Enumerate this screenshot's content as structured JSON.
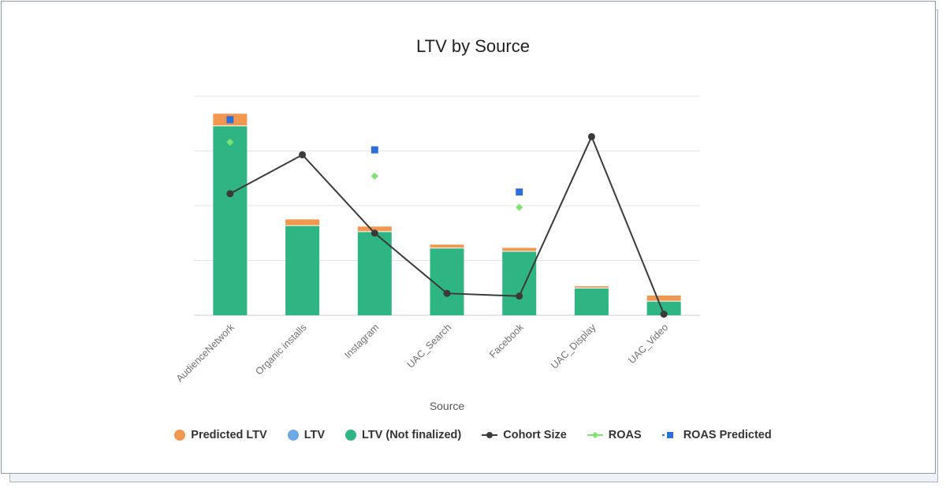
{
  "chart_data": {
    "type": "bar",
    "title": "LTV by Source",
    "xlabel": "Source",
    "ylabel": "",
    "categories": [
      "AudienceNetwork",
      "Organic installs",
      "Instagram",
      "UAC_Search",
      "Facebook",
      "UAC_Display",
      "UAC_Video"
    ],
    "ylim": [
      0,
      4
    ],
    "grid": true,
    "legend_position": "bottom",
    "series": [
      {
        "name": "LTV (Not finalized)",
        "kind": "stacked-bar",
        "color": "#2fb584",
        "values": [
          3.45,
          1.63,
          1.52,
          1.22,
          1.16,
          0.49,
          0.25
        ]
      },
      {
        "name": "Predicted LTV",
        "kind": "stacked-bar",
        "color": "#f2974f",
        "values": [
          0.23,
          0.12,
          0.1,
          0.07,
          0.07,
          0.04,
          0.11
        ]
      },
      {
        "name": "LTV",
        "kind": "stacked-bar",
        "color": "#6fa8e8",
        "values": [
          0,
          0,
          0,
          0,
          0,
          0,
          0
        ]
      },
      {
        "name": "Cohort Size",
        "kind": "line",
        "color": "#3a3a3a",
        "values": [
          2.22,
          2.93,
          1.5,
          0.4,
          0.35,
          3.26,
          0.02
        ]
      },
      {
        "name": "ROAS",
        "kind": "scatter-diamond",
        "color": "#7ee36f",
        "values": [
          3.16,
          null,
          2.54,
          null,
          1.97,
          null,
          null
        ]
      },
      {
        "name": "ROAS Predicted",
        "kind": "scatter-square",
        "color": "#2d6fd6",
        "values": [
          3.57,
          null,
          3.02,
          null,
          2.25,
          null,
          null
        ]
      }
    ],
    "legend_order": [
      "Predicted LTV",
      "LTV",
      "LTV (Not finalized)",
      "Cohort Size",
      "ROAS",
      "ROAS Predicted"
    ]
  }
}
